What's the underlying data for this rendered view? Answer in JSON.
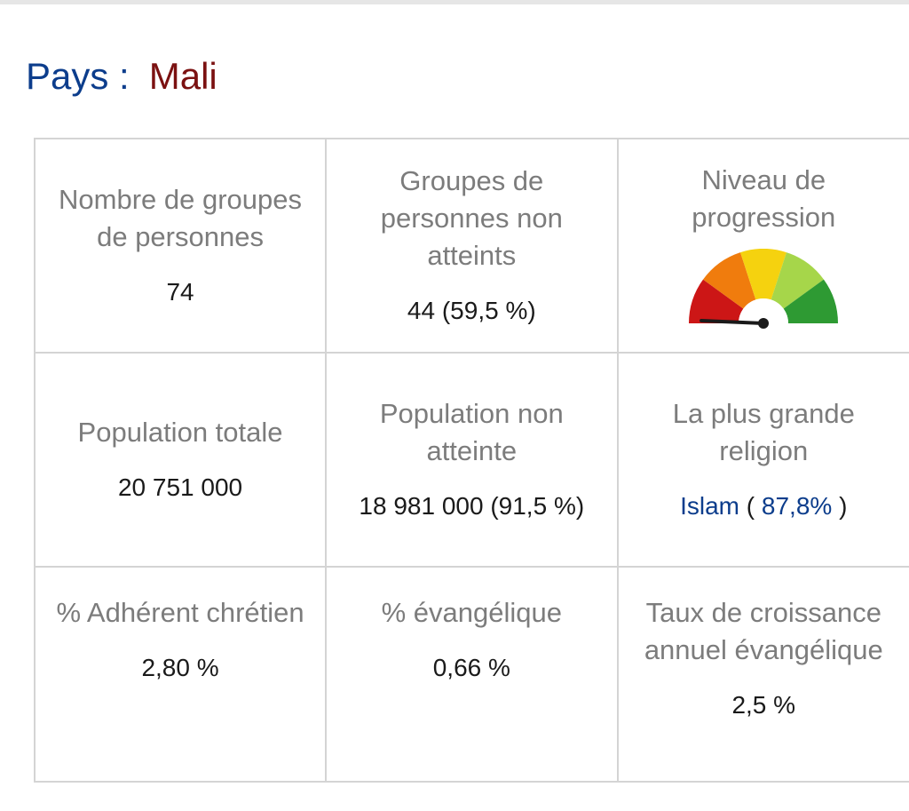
{
  "header": {
    "label": "Pays :",
    "country": "Mali"
  },
  "stats": {
    "people_groups": {
      "label": "Nombre de groupes de personnes",
      "value": "74"
    },
    "unreached_groups": {
      "label": "Groupes de personnes non atteints",
      "value": "44 (59,5 %)"
    },
    "progress_level": {
      "label": "Niveau de progression",
      "gauge_icon": "progress-gauge",
      "gauge_level_fraction": 0.02,
      "gauge_colors": [
        "#cc1616",
        "#f07c0d",
        "#f5d20f",
        "#a6d64a",
        "#2e9a33"
      ]
    },
    "total_population": {
      "label": "Population totale",
      "value": "20 751 000"
    },
    "unreached_population": {
      "label": "Population non atteinte",
      "value": "18 981 000 (91,5 %)"
    },
    "largest_religion": {
      "label": "La plus grande religion",
      "religion": "Islam",
      "open_paren": "(",
      "percent": "87,8%",
      "close_paren": ")"
    },
    "christian_adherent": {
      "label": "% Adhérent chrétien",
      "value": "2,80 %"
    },
    "evangelical": {
      "label": "% évangélique",
      "value": "0,66 %"
    },
    "evangelical_growth": {
      "label": "Taux de croissance annuel évangélique",
      "value": "2,5 %"
    }
  },
  "colors": {
    "heading_label": "#0c3d8c",
    "heading_country": "#7b1111",
    "link_blue": "#0c3d8c",
    "cell_label": "#7c7c7c",
    "border": "#d4d4d4"
  }
}
